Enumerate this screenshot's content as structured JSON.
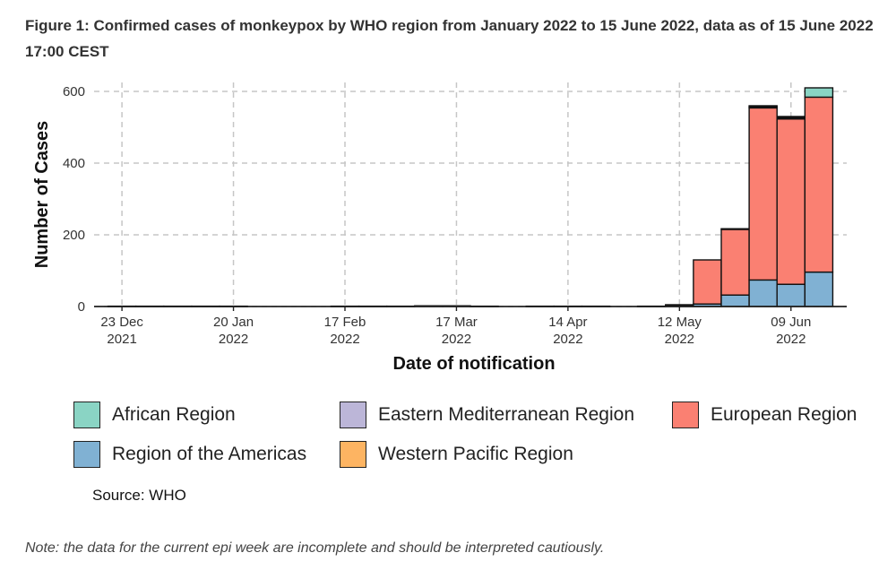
{
  "figure": {
    "title": "Figure 1: Confirmed cases of monkeypox by WHO region from January 2022 to 15 June 2022, data as of 15 June 2022 17:00 CEST",
    "source": "Source: WHO",
    "note": "Note: the data for the current epi week are incomplete and should be interpreted cautiously."
  },
  "chart_data": {
    "type": "bar",
    "stacked": true,
    "title": "Confirmed cases of monkeypox by WHO region",
    "xlabel": "Date of notification",
    "ylabel": "Number of Cases",
    "ylim": [
      0,
      625
    ],
    "yticks": [
      0,
      200,
      400,
      600
    ],
    "grid": true,
    "legend_position": "bottom",
    "x_ticks": [
      {
        "line1": "23 Dec",
        "line2": "2021",
        "week": 0
      },
      {
        "line1": "20 Jan",
        "line2": "2022",
        "week": 4
      },
      {
        "line1": "17 Feb",
        "line2": "2022",
        "week": 8
      },
      {
        "line1": "17 Mar",
        "line2": "2022",
        "week": 12
      },
      {
        "line1": "14 Apr",
        "line2": "2022",
        "week": 16
      },
      {
        "line1": "12 May",
        "line2": "2022",
        "week": 20
      },
      {
        "line1": "09 Jun",
        "line2": "2022",
        "week": 24
      }
    ],
    "series_order": [
      "Region of the Americas",
      "European Region",
      "Eastern Mediterranean Region",
      "Western Pacific Region",
      "African Region"
    ],
    "series": [
      {
        "name": "African Region",
        "color": "#8ad4c4",
        "values": [
          0,
          0,
          0,
          0,
          0,
          0,
          0,
          0,
          0,
          0,
          0,
          0,
          0,
          0,
          0,
          0,
          0,
          0,
          0,
          0,
          0,
          0,
          0,
          3,
          3,
          26
        ]
      },
      {
        "name": "Eastern Mediterranean Region",
        "color": "#bcb6d8",
        "values": [
          0,
          0,
          0,
          0,
          0,
          0,
          0,
          0,
          0,
          0,
          0,
          0,
          0,
          0,
          0,
          0,
          0,
          0,
          0,
          0,
          0,
          0,
          0,
          0,
          2,
          0
        ]
      },
      {
        "name": "European Region",
        "color": "#fa8072",
        "values": [
          0,
          0,
          0,
          0,
          0,
          0,
          0,
          0,
          0,
          0,
          0,
          0,
          0,
          0,
          0,
          0,
          0,
          0,
          0,
          0,
          2,
          123,
          183,
          480,
          461,
          488
        ]
      },
      {
        "name": "Region of the Americas",
        "color": "#80b1d3",
        "values": [
          1,
          1,
          1,
          1,
          1,
          0,
          0,
          0,
          1,
          1,
          1,
          2,
          2,
          1,
          0,
          1,
          1,
          1,
          0,
          1,
          3,
          7,
          32,
          74,
          62,
          96
        ]
      },
      {
        "name": "Western Pacific Region",
        "color": "#fdb462",
        "values": [
          0,
          0,
          0,
          0,
          0,
          0,
          0,
          0,
          0,
          0,
          0,
          0,
          0,
          0,
          0,
          0,
          0,
          0,
          0,
          0,
          0,
          0,
          2,
          3,
          2,
          0
        ]
      }
    ]
  },
  "legend": {
    "items": [
      {
        "name": "African Region",
        "color": "#8ad4c4"
      },
      {
        "name": "Eastern Mediterranean Region",
        "color": "#bcb6d8"
      },
      {
        "name": "European Region",
        "color": "#fa8072"
      },
      {
        "name": "Region of the Americas",
        "color": "#80b1d3"
      },
      {
        "name": "Western Pacific Region",
        "color": "#fdb462"
      }
    ]
  }
}
